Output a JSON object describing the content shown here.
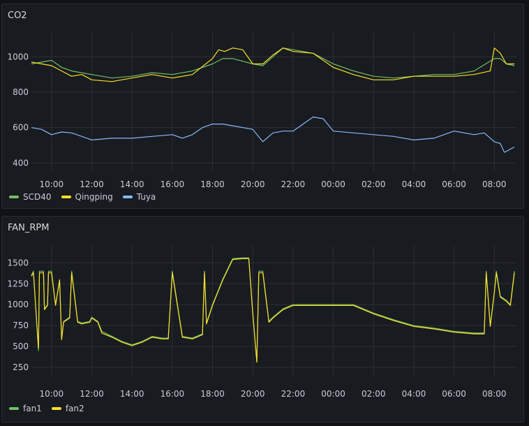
{
  "panels": {
    "co2": {
      "title": "CO2"
    },
    "fan": {
      "title": "FAN_RPM"
    }
  },
  "colors": {
    "background": "#111217",
    "panel": "#181b1f",
    "grid": "#2c2f35",
    "green": "#73bf69",
    "yellow": "#fade2a",
    "blue": "#8ab8ff"
  },
  "chart_data": [
    {
      "type": "line",
      "title": "CO2",
      "x_unit": "hours since 09:00 (chart start, 09:00 = 0)",
      "x_ticks": [
        "10:00",
        "12:00",
        "14:00",
        "16:00",
        "18:00",
        "20:00",
        "22:00",
        "00:00",
        "02:00",
        "04:00",
        "06:00",
        "08:00"
      ],
      "y_ticks": [
        400,
        600,
        800,
        1000
      ],
      "ylim": [
        350,
        1100
      ],
      "xlim": [
        0,
        24.1
      ],
      "legend": "bottom-left",
      "series": [
        {
          "name": "SCD40",
          "color": "#73bf69",
          "x": [
            0,
            1,
            1.5,
            2,
            3,
            4,
            5,
            6,
            7,
            8,
            9,
            9.5,
            10,
            11,
            11.5,
            12,
            12.5,
            13,
            14,
            15,
            16,
            17,
            18,
            19,
            20,
            21,
            22,
            23,
            23.3,
            23.6,
            24
          ],
          "y": [
            960,
            980,
            940,
            920,
            900,
            880,
            890,
            910,
            900,
            920,
            960,
            990,
            990,
            960,
            950,
            1000,
            1050,
            1040,
            1020,
            960,
            920,
            890,
            880,
            890,
            900,
            900,
            920,
            990,
            990,
            960,
            950
          ]
        },
        {
          "name": "Qingping",
          "color": "#fade2a",
          "x": [
            0,
            1,
            1.5,
            2,
            2.5,
            3,
            4,
            5,
            6,
            7,
            8,
            9,
            9.3,
            9.6,
            10,
            10.5,
            11,
            11.5,
            12,
            12.5,
            13,
            14,
            15,
            16,
            17,
            18,
            19,
            20,
            21,
            22,
            22.8,
            23,
            23.3,
            23.6,
            24
          ],
          "y": [
            970,
            950,
            920,
            890,
            900,
            870,
            860,
            880,
            900,
            880,
            900,
            990,
            1040,
            1030,
            1050,
            1040,
            960,
            960,
            1010,
            1050,
            1030,
            1020,
            940,
            900,
            870,
            870,
            890,
            890,
            890,
            900,
            920,
            1050,
            1020,
            960,
            960
          ]
        },
        {
          "name": "Tuya",
          "color": "#8ab8ff",
          "x": [
            0,
            0.5,
            1,
            1.5,
            2,
            3,
            4,
            5,
            6,
            7,
            7.5,
            8,
            8.5,
            9,
            9.5,
            10,
            11,
            11.5,
            12,
            12.5,
            13,
            14,
            14.5,
            15,
            16,
            17,
            18,
            19,
            20,
            21,
            22,
            22.5,
            23,
            23.3,
            23.5,
            24
          ],
          "y": [
            600,
            590,
            560,
            575,
            570,
            530,
            540,
            540,
            550,
            560,
            540,
            560,
            600,
            620,
            620,
            610,
            590,
            520,
            570,
            580,
            580,
            660,
            650,
            580,
            570,
            560,
            550,
            530,
            540,
            580,
            560,
            570,
            520,
            510,
            460,
            490
          ]
        }
      ]
    },
    {
      "type": "line",
      "title": "FAN_RPM",
      "x_unit": "hours since 09:00 (chart start, 09:00 = 0)",
      "x_ticks": [
        "10:00",
        "12:00",
        "14:00",
        "16:00",
        "18:00",
        "20:00",
        "22:00",
        "00:00",
        "02:00",
        "04:00",
        "06:00",
        "08:00"
      ],
      "y_ticks": [
        250,
        500,
        750,
        1000,
        1250,
        1500
      ],
      "ylim": [
        150,
        1620
      ],
      "xlim": [
        0,
        24.1
      ],
      "legend": "bottom-left",
      "series": [
        {
          "name": "fan1",
          "color": "#73bf69",
          "x": [
            0,
            0.1,
            0.35,
            0.4,
            0.6,
            0.65,
            0.8,
            0.85,
            1.0,
            1.2,
            1.4,
            1.5,
            1.6,
            1.9,
            2.0,
            2.3,
            2.5,
            2.9,
            3.0,
            3.3,
            3.5,
            4,
            4.5,
            5,
            5.5,
            6,
            6.5,
            6.8,
            7,
            7.5,
            8,
            8.5,
            8.6,
            8.7,
            9,
            9.5,
            10,
            10.5,
            10.8,
            11,
            11.2,
            11.3,
            11.5,
            11.8,
            12,
            12.5,
            13,
            14,
            15,
            16,
            17,
            18,
            19,
            20,
            21,
            22,
            22.5,
            22.6,
            22.8,
            23,
            23.1,
            23.3,
            23.6,
            23.8,
            24
          ],
          "y": [
            1350,
            1400,
            450,
            1400,
            1400,
            950,
            1000,
            1400,
            1400,
            1000,
            1300,
            600,
            800,
            850,
            1400,
            800,
            780,
            800,
            850,
            800,
            680,
            620,
            560,
            520,
            560,
            620,
            600,
            600,
            1400,
            620,
            600,
            650,
            1400,
            780,
            1000,
            1300,
            1550,
            1560,
            1560,
            900,
            320,
            1400,
            1400,
            800,
            850,
            950,
            1000,
            1000,
            1000,
            1000,
            900,
            820,
            750,
            720,
            680,
            660,
            660,
            1400,
            750,
            1150,
            1400,
            1100,
            1050,
            1000,
            1400
          ]
        },
        {
          "name": "fan2",
          "color": "#fade2a",
          "x": [
            0,
            0.1,
            0.35,
            0.4,
            0.6,
            0.65,
            0.8,
            0.85,
            1.0,
            1.2,
            1.4,
            1.5,
            1.6,
            1.9,
            2.0,
            2.3,
            2.5,
            2.9,
            3.0,
            3.3,
            3.5,
            4,
            4.5,
            5,
            5.5,
            6,
            6.5,
            6.8,
            7,
            7.5,
            8,
            8.5,
            8.6,
            8.7,
            9,
            9.5,
            10,
            10.5,
            10.8,
            11,
            11.2,
            11.3,
            11.5,
            11.8,
            12,
            12.5,
            13,
            14,
            15,
            16,
            17,
            18,
            19,
            20,
            21,
            22,
            22.5,
            22.6,
            22.8,
            23,
            23.1,
            23.3,
            23.6,
            23.8,
            24
          ],
          "y": [
            1340,
            1380,
            480,
            1380,
            1380,
            940,
            990,
            1380,
            1380,
            990,
            1290,
            580,
            790,
            840,
            1380,
            790,
            770,
            790,
            840,
            790,
            660,
            610,
            550,
            510,
            550,
            610,
            590,
            590,
            1380,
            610,
            590,
            640,
            1380,
            770,
            990,
            1290,
            1540,
            1550,
            1550,
            890,
            310,
            1380,
            1380,
            790,
            840,
            940,
            990,
            990,
            990,
            990,
            890,
            810,
            740,
            710,
            670,
            650,
            650,
            1380,
            740,
            1140,
            1380,
            1090,
            1040,
            990,
            1380
          ]
        }
      ]
    }
  ]
}
